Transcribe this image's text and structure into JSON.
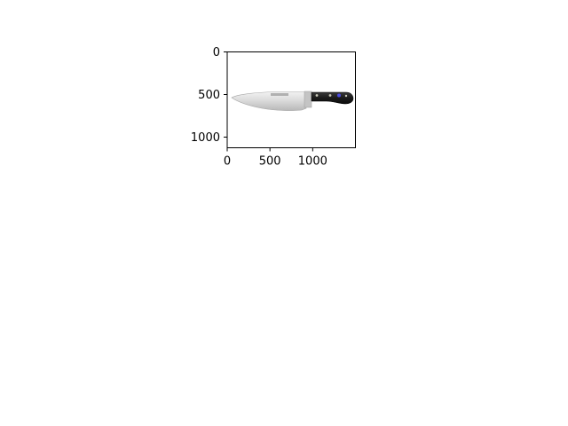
{
  "chart_data": {
    "type": "image",
    "title": "",
    "xlabel": "",
    "ylabel": "",
    "xlim": [
      0,
      1500
    ],
    "ylim": [
      1125,
      0
    ],
    "x_ticks": [
      {
        "value": 0,
        "label": "0"
      },
      {
        "value": 500,
        "label": "500"
      },
      {
        "value": 1000,
        "label": "1000"
      }
    ],
    "y_ticks": [
      {
        "value": 0,
        "label": "0"
      },
      {
        "value": 500,
        "label": "500"
      },
      {
        "value": 1000,
        "label": "1000"
      }
    ],
    "grid": false,
    "image_subject": "chef-knife",
    "colors": {
      "handle": "#1c1c1c",
      "blade": "#d6d6d6",
      "rivet": "#c9c9b8",
      "logo": "#4a4adf"
    }
  }
}
